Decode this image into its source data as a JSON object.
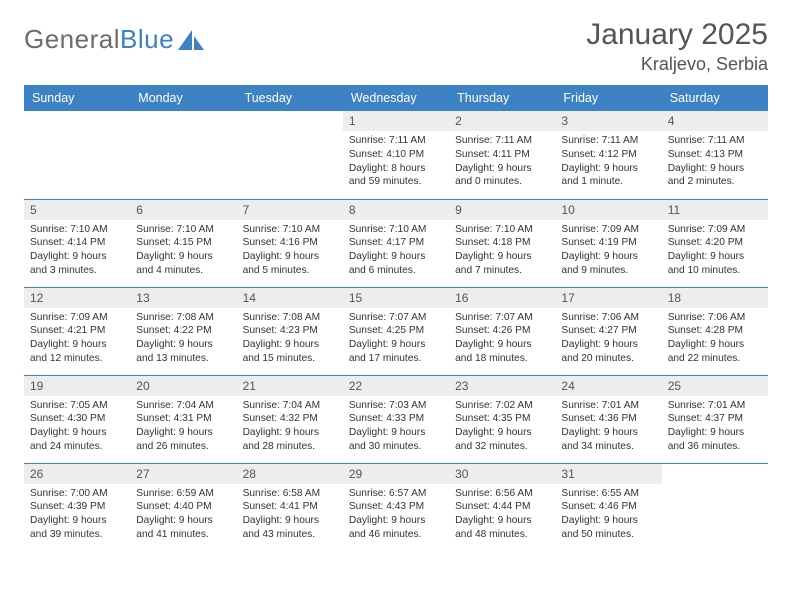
{
  "brand": {
    "part1": "General",
    "part2": "Blue"
  },
  "title": "January 2025",
  "location": "Kraljevo, Serbia",
  "colors": {
    "header_bg": "#3d82c4",
    "header_text": "#ffffff",
    "daynum_bg": "#ededed",
    "text": "#333333",
    "brand_gray": "#6b6b6b",
    "brand_blue": "#3d82c4",
    "border": "#3d82c4"
  },
  "weekdays": [
    "Sunday",
    "Monday",
    "Tuesday",
    "Wednesday",
    "Thursday",
    "Friday",
    "Saturday"
  ],
  "startOffset": 3,
  "days": [
    {
      "n": "1",
      "sr": "7:11 AM",
      "ss": "4:10 PM",
      "dl": "8 hours and 59 minutes."
    },
    {
      "n": "2",
      "sr": "7:11 AM",
      "ss": "4:11 PM",
      "dl": "9 hours and 0 minutes."
    },
    {
      "n": "3",
      "sr": "7:11 AM",
      "ss": "4:12 PM",
      "dl": "9 hours and 1 minute."
    },
    {
      "n": "4",
      "sr": "7:11 AM",
      "ss": "4:13 PM",
      "dl": "9 hours and 2 minutes."
    },
    {
      "n": "5",
      "sr": "7:10 AM",
      "ss": "4:14 PM",
      "dl": "9 hours and 3 minutes."
    },
    {
      "n": "6",
      "sr": "7:10 AM",
      "ss": "4:15 PM",
      "dl": "9 hours and 4 minutes."
    },
    {
      "n": "7",
      "sr": "7:10 AM",
      "ss": "4:16 PM",
      "dl": "9 hours and 5 minutes."
    },
    {
      "n": "8",
      "sr": "7:10 AM",
      "ss": "4:17 PM",
      "dl": "9 hours and 6 minutes."
    },
    {
      "n": "9",
      "sr": "7:10 AM",
      "ss": "4:18 PM",
      "dl": "9 hours and 7 minutes."
    },
    {
      "n": "10",
      "sr": "7:09 AM",
      "ss": "4:19 PM",
      "dl": "9 hours and 9 minutes."
    },
    {
      "n": "11",
      "sr": "7:09 AM",
      "ss": "4:20 PM",
      "dl": "9 hours and 10 minutes."
    },
    {
      "n": "12",
      "sr": "7:09 AM",
      "ss": "4:21 PM",
      "dl": "9 hours and 12 minutes."
    },
    {
      "n": "13",
      "sr": "7:08 AM",
      "ss": "4:22 PM",
      "dl": "9 hours and 13 minutes."
    },
    {
      "n": "14",
      "sr": "7:08 AM",
      "ss": "4:23 PM",
      "dl": "9 hours and 15 minutes."
    },
    {
      "n": "15",
      "sr": "7:07 AM",
      "ss": "4:25 PM",
      "dl": "9 hours and 17 minutes."
    },
    {
      "n": "16",
      "sr": "7:07 AM",
      "ss": "4:26 PM",
      "dl": "9 hours and 18 minutes."
    },
    {
      "n": "17",
      "sr": "7:06 AM",
      "ss": "4:27 PM",
      "dl": "9 hours and 20 minutes."
    },
    {
      "n": "18",
      "sr": "7:06 AM",
      "ss": "4:28 PM",
      "dl": "9 hours and 22 minutes."
    },
    {
      "n": "19",
      "sr": "7:05 AM",
      "ss": "4:30 PM",
      "dl": "9 hours and 24 minutes."
    },
    {
      "n": "20",
      "sr": "7:04 AM",
      "ss": "4:31 PM",
      "dl": "9 hours and 26 minutes."
    },
    {
      "n": "21",
      "sr": "7:04 AM",
      "ss": "4:32 PM",
      "dl": "9 hours and 28 minutes."
    },
    {
      "n": "22",
      "sr": "7:03 AM",
      "ss": "4:33 PM",
      "dl": "9 hours and 30 minutes."
    },
    {
      "n": "23",
      "sr": "7:02 AM",
      "ss": "4:35 PM",
      "dl": "9 hours and 32 minutes."
    },
    {
      "n": "24",
      "sr": "7:01 AM",
      "ss": "4:36 PM",
      "dl": "9 hours and 34 minutes."
    },
    {
      "n": "25",
      "sr": "7:01 AM",
      "ss": "4:37 PM",
      "dl": "9 hours and 36 minutes."
    },
    {
      "n": "26",
      "sr": "7:00 AM",
      "ss": "4:39 PM",
      "dl": "9 hours and 39 minutes."
    },
    {
      "n": "27",
      "sr": "6:59 AM",
      "ss": "4:40 PM",
      "dl": "9 hours and 41 minutes."
    },
    {
      "n": "28",
      "sr": "6:58 AM",
      "ss": "4:41 PM",
      "dl": "9 hours and 43 minutes."
    },
    {
      "n": "29",
      "sr": "6:57 AM",
      "ss": "4:43 PM",
      "dl": "9 hours and 46 minutes."
    },
    {
      "n": "30",
      "sr": "6:56 AM",
      "ss": "4:44 PM",
      "dl": "9 hours and 48 minutes."
    },
    {
      "n": "31",
      "sr": "6:55 AM",
      "ss": "4:46 PM",
      "dl": "9 hours and 50 minutes."
    }
  ],
  "labels": {
    "sunrise": "Sunrise:",
    "sunset": "Sunset:",
    "daylight": "Daylight:"
  }
}
